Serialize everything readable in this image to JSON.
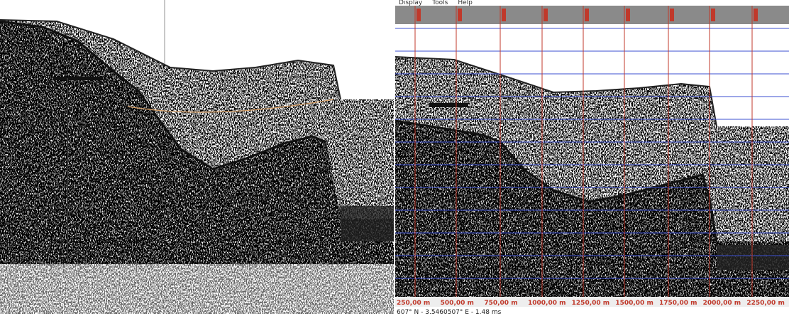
{
  "menu": {
    "items": [
      "Display",
      "Tools",
      "Help"
    ]
  },
  "distance_scale": {
    "labels": [
      "250,00 m",
      "500,00 m",
      "750,00 m",
      "1000,00 m",
      "1250,00 m",
      "1500,00 m",
      "1750,00 m",
      "2000,00 m",
      "2250,00 m"
    ]
  },
  "status_bar": {
    "text": "607° N - 3.5460507° E - 1.48 ms"
  }
}
